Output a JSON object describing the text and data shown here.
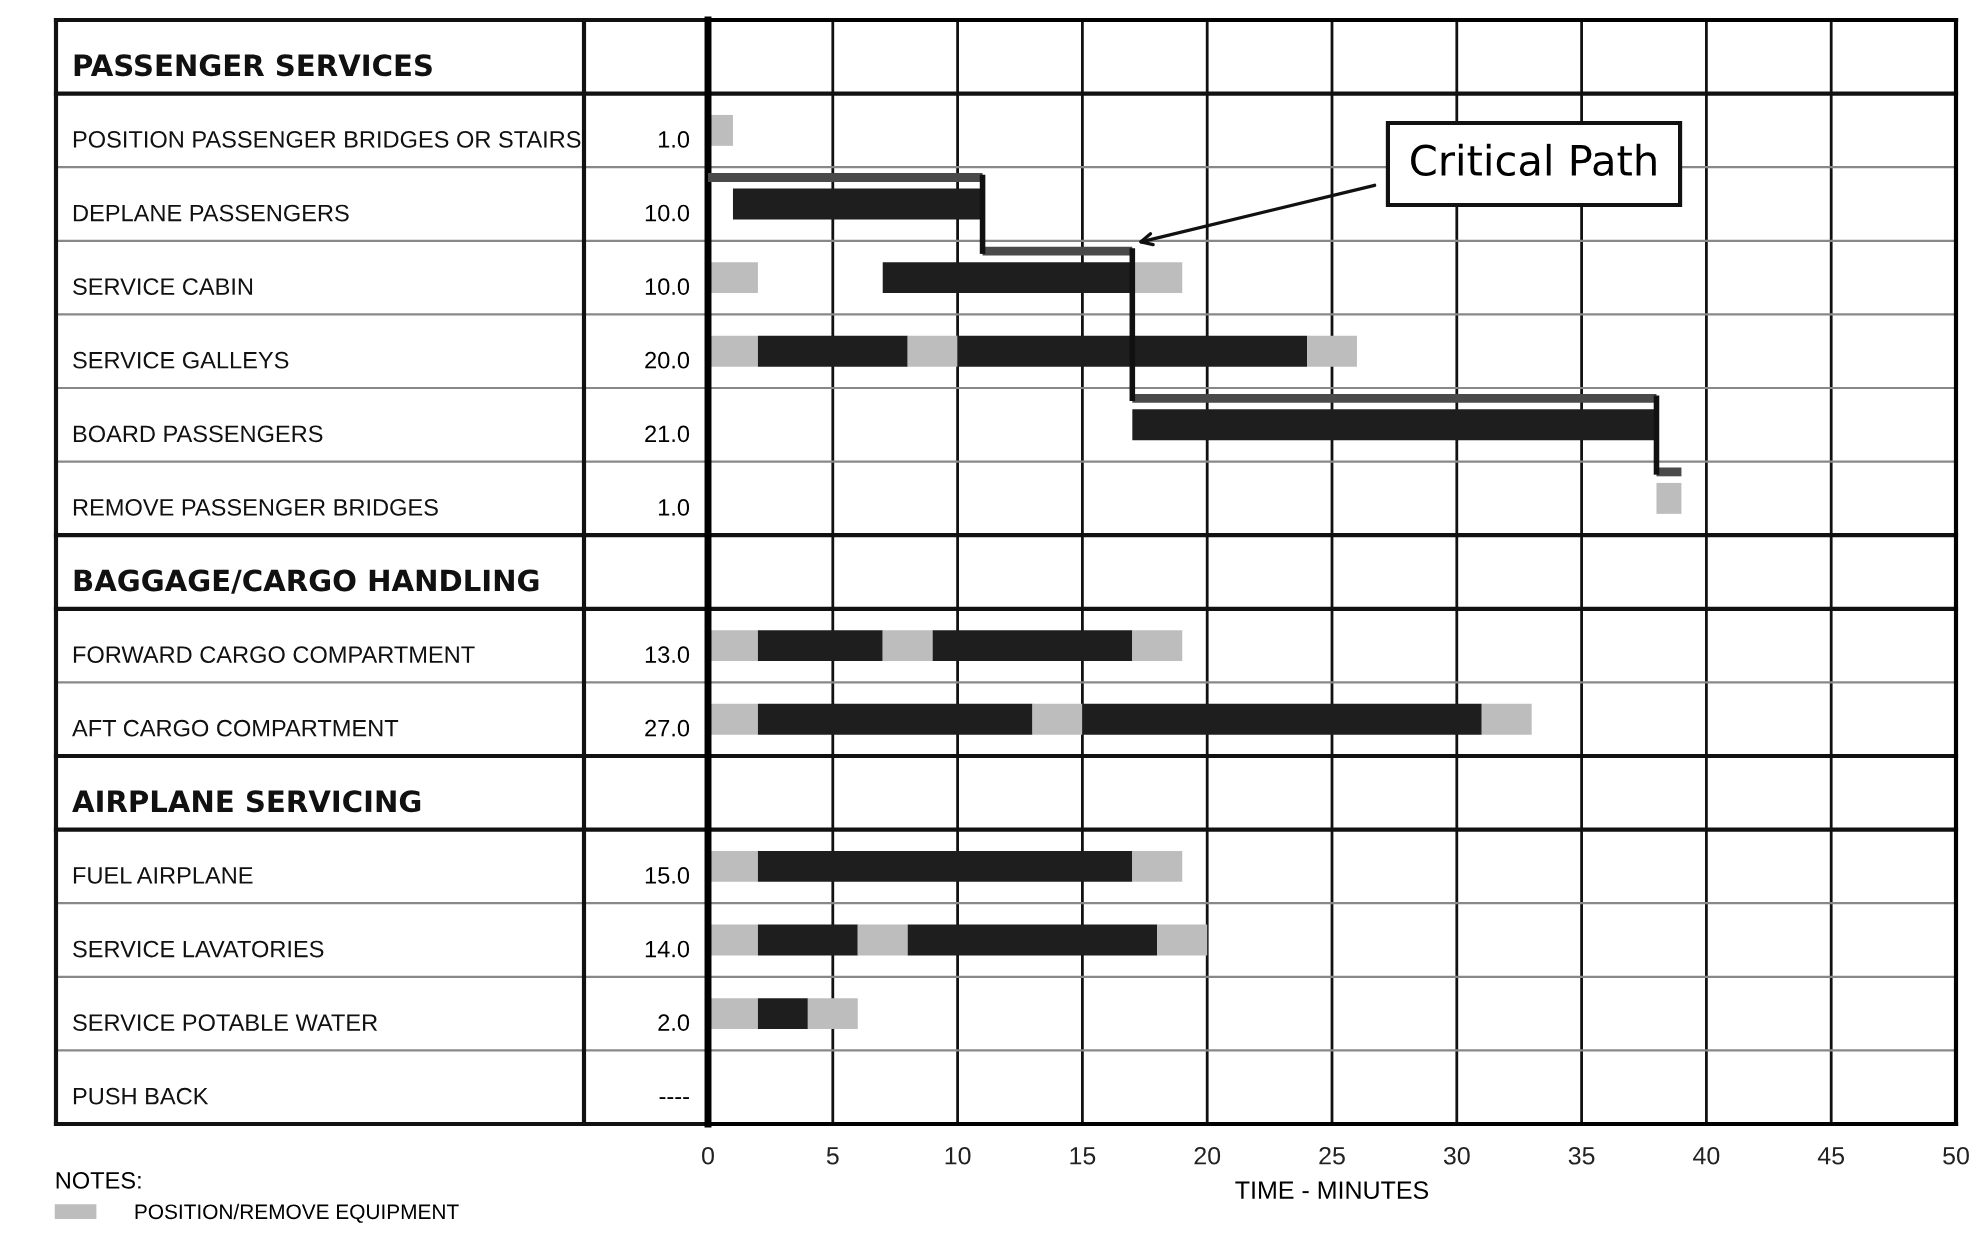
{
  "chart_data": {
    "type": "bar",
    "orientation": "horizontal",
    "xlabel": "TIME - MINUTES",
    "categories": [
      "PASSENGER SERVICES",
      "POSITION PASSENGER BRIDGES OR STAIRS",
      "DEPLANE PASSENGERS",
      "SERVICE CABIN",
      "SERVICE GALLEYS",
      "BOARD PASSENGERS",
      "REMOVE PASSENGER BRIDGES",
      "BAGGAGE/CARGO HANDLING",
      "FORWARD CARGO COMPARTMENT",
      "AFT CARGO COMPARTMENT",
      "AIRPLANE SERVICING",
      "FUEL AIRPLANE",
      "SERVICE LAVATORIES",
      "SERVICE POTABLE WATER",
      "PUSH BACK"
    ],
    "y2_categories": [
      null,
      "1.0",
      "10.0",
      "10.0",
      "20.0",
      "21.0",
      "1.0",
      null,
      "13.0",
      "27.0",
      null,
      "15.0",
      "14.0",
      "2.0",
      "----"
    ],
    "series": [
      {
        "name": "POSITION/REMOVE EQUIPMENT",
        "color": "#bdbdbd",
        "base": [
          null,
          0,
          null,
          0,
          0,
          null,
          38,
          null,
          0,
          0,
          null,
          0,
          0,
          0,
          null
        ],
        "values": [
          null,
          1,
          null,
          2,
          2,
          null,
          1,
          null,
          2,
          2,
          null,
          2,
          2,
          2,
          null
        ]
      },
      {
        "color": "#1e1e1e",
        "base": [
          null,
          null,
          1,
          7,
          2,
          17,
          null,
          null,
          2,
          2,
          null,
          2,
          2,
          2,
          null
        ],
        "values": [
          null,
          null,
          10,
          10,
          6,
          21,
          null,
          null,
          5,
          11,
          null,
          15,
          4,
          2,
          null
        ]
      },
      {
        "color": "#bdbdbd",
        "base": [
          null,
          null,
          null,
          17,
          8,
          null,
          null,
          null,
          7,
          13,
          null,
          17,
          6,
          4,
          null
        ],
        "values": [
          null,
          null,
          null,
          2,
          2,
          null,
          null,
          null,
          2,
          2,
          null,
          2,
          2,
          2,
          null
        ]
      },
      {
        "color": "#1e1e1e",
        "base": [
          null,
          null,
          null,
          null,
          10,
          null,
          null,
          null,
          9,
          15,
          null,
          null,
          8,
          null,
          null
        ],
        "values": [
          null,
          null,
          null,
          null,
          14,
          null,
          null,
          null,
          8,
          16,
          null,
          null,
          10,
          null,
          null
        ]
      },
      {
        "color": "#bdbdbd",
        "base": [
          null,
          null,
          null,
          null,
          24,
          null,
          null,
          null,
          17,
          31,
          null,
          null,
          18,
          null,
          null
        ],
        "values": [
          null,
          null,
          null,
          null,
          2,
          null,
          null,
          null,
          2,
          2,
          null,
          null,
          2,
          null,
          null
        ]
      },
      {
        "color": "#4a4a4a",
        "base": [
          null,
          null,
          0,
          11,
          null,
          17,
          38,
          null,
          null,
          null,
          null,
          null,
          null,
          null,
          null
        ],
        "values": [
          null,
          null,
          11,
          6,
          null,
          21,
          1,
          null,
          null,
          null,
          null,
          null,
          null,
          null,
          null
        ]
      }
    ],
    "xlim": [
      0,
      50
    ],
    "xticks": [
      0,
      5,
      10,
      15,
      20,
      25,
      30,
      35,
      40,
      45,
      50
    ],
    "grid": "x",
    "legend": "bottom left",
    "legend_title": "NOTES:",
    "annotations": [
      "Critical Path"
    ]
  }
}
